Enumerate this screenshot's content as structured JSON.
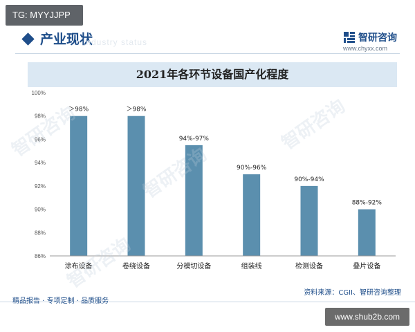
{
  "tag": "TG: MYYJJPP",
  "section": {
    "title": "产业现状",
    "watermark": "Industry status"
  },
  "brand": {
    "name": "智研咨询",
    "url": "www.chyxx.com",
    "color": "#1f4e8a"
  },
  "watermarks": [
    "智研咨询",
    "智研咨询",
    "智研咨询",
    "智研咨询"
  ],
  "chart_data": {
    "type": "bar",
    "title": "2021年各环节设备国产化程度",
    "categories": [
      "涂布设备",
      "卷绕设备",
      "分模切设备",
      "组装线",
      "检测设备",
      "叠片设备"
    ],
    "values": [
      98,
      98,
      95.5,
      93,
      92,
      90
    ],
    "data_labels": [
      "＞98%",
      "＞98%",
      "94%-97%",
      "90%-96%",
      "90%-94%",
      "88%-92%"
    ],
    "yticks": [
      "100%",
      "98%",
      "96%",
      "94%",
      "92%",
      "90%",
      "88%",
      "86%"
    ],
    "ylim": [
      86,
      100
    ],
    "bar_color": "#5b8fae",
    "grid": false,
    "xlabel": "",
    "ylabel": ""
  },
  "footer": {
    "source": "资料来源：CGII、智研咨询整理",
    "slogan": "精品报告 · 专项定制 · 品质服务",
    "site": "www.shub2b.com"
  }
}
